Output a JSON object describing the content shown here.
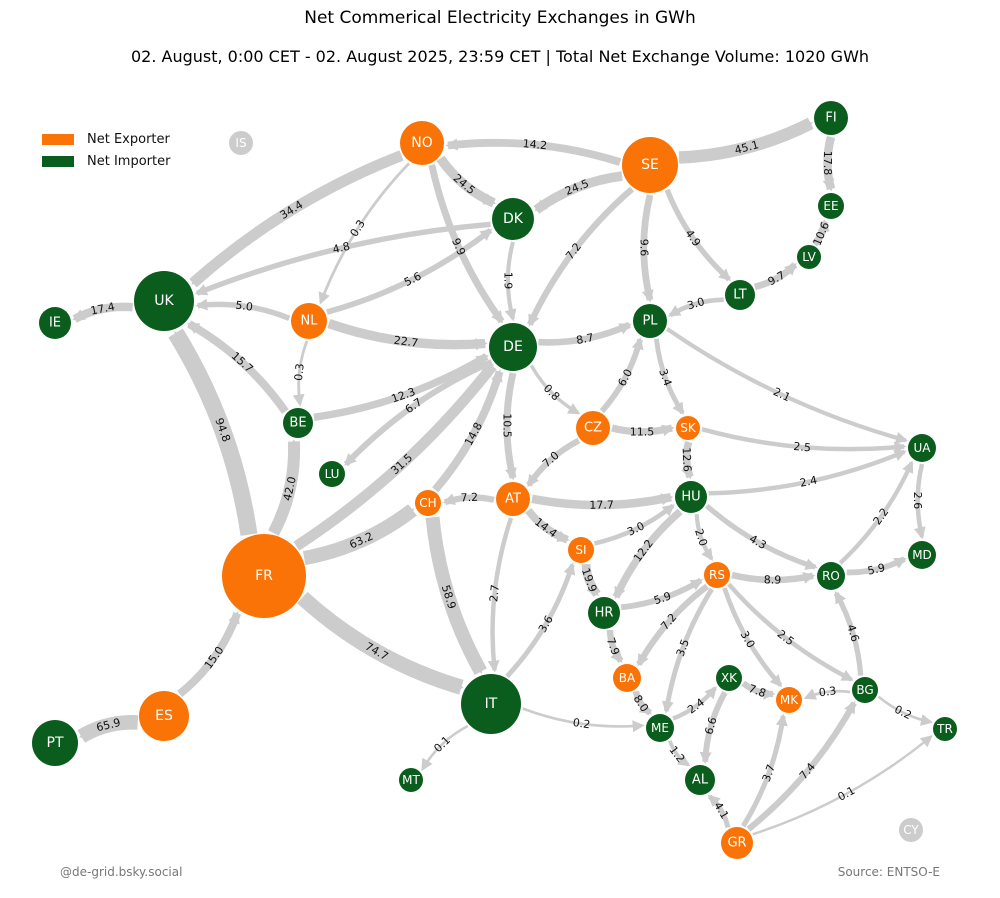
{
  "title": "Net Commerical Electricity Exchanges in GWh",
  "subtitle": "02. August, 0:00 CET - 02. August 2025, 23:59 CET | Total Net Exchange Volume: 1020 GWh",
  "legend": {
    "exporter_label": "Net Exporter",
    "importer_label": "Net Importer"
  },
  "colors": {
    "exporter": "#f97306",
    "importer": "#0a5d1c",
    "no_data": "#cccccc",
    "edge": "#cccccc"
  },
  "credit": "@de-grid.bsky.social",
  "source": "Source: ENTSO-E",
  "nodes": [
    {
      "id": "IS",
      "status": "none"
    },
    {
      "id": "NO",
      "status": "exporter"
    },
    {
      "id": "SE",
      "status": "exporter"
    },
    {
      "id": "FI",
      "status": "importer"
    },
    {
      "id": "EE",
      "status": "importer"
    },
    {
      "id": "LV",
      "status": "importer"
    },
    {
      "id": "LT",
      "status": "importer"
    },
    {
      "id": "DK",
      "status": "importer"
    },
    {
      "id": "UK",
      "status": "importer"
    },
    {
      "id": "IE",
      "status": "importer"
    },
    {
      "id": "NL",
      "status": "exporter"
    },
    {
      "id": "DE",
      "status": "importer"
    },
    {
      "id": "PL",
      "status": "importer"
    },
    {
      "id": "BE",
      "status": "importer"
    },
    {
      "id": "LU",
      "status": "importer"
    },
    {
      "id": "CZ",
      "status": "exporter"
    },
    {
      "id": "SK",
      "status": "exporter"
    },
    {
      "id": "UA",
      "status": "importer"
    },
    {
      "id": "CH",
      "status": "exporter"
    },
    {
      "id": "AT",
      "status": "exporter"
    },
    {
      "id": "HU",
      "status": "importer"
    },
    {
      "id": "SI",
      "status": "exporter"
    },
    {
      "id": "MD",
      "status": "importer"
    },
    {
      "id": "FR",
      "status": "exporter"
    },
    {
      "id": "HR",
      "status": "importer"
    },
    {
      "id": "RS",
      "status": "exporter"
    },
    {
      "id": "RO",
      "status": "importer"
    },
    {
      "id": "BA",
      "status": "exporter"
    },
    {
      "id": "XK",
      "status": "importer"
    },
    {
      "id": "MK",
      "status": "exporter"
    },
    {
      "id": "BG",
      "status": "importer"
    },
    {
      "id": "IT",
      "status": "importer"
    },
    {
      "id": "ME",
      "status": "importer"
    },
    {
      "id": "TR",
      "status": "importer"
    },
    {
      "id": "ES",
      "status": "exporter"
    },
    {
      "id": "PT",
      "status": "importer"
    },
    {
      "id": "MT",
      "status": "importer"
    },
    {
      "id": "AL",
      "status": "importer"
    },
    {
      "id": "GR",
      "status": "exporter"
    },
    {
      "id": "CY",
      "status": "none"
    }
  ],
  "edges": [
    {
      "from": "SE",
      "to": "NO",
      "value": 14.2,
      "label": "14.2"
    },
    {
      "from": "SE",
      "to": "FI",
      "value": 45.1,
      "label": "45.1"
    },
    {
      "from": "SE",
      "to": "DK",
      "value": 24.5,
      "label": "24.5"
    },
    {
      "from": "SE",
      "to": "DE",
      "value": 7.2,
      "label": "7.2"
    },
    {
      "from": "SE",
      "to": "PL",
      "value": 9.6,
      "label": "9.6"
    },
    {
      "from": "SE",
      "to": "LT",
      "value": 4.9,
      "label": "4.9"
    },
    {
      "from": "FI",
      "to": "EE",
      "value": 17.8,
      "label": "17.8"
    },
    {
      "from": "LV",
      "to": "EE",
      "value": 10.6,
      "label": "10.6"
    },
    {
      "from": "LT",
      "to": "LV",
      "value": 9.7,
      "label": "9.7"
    },
    {
      "from": "LT",
      "to": "PL",
      "value": 3.0,
      "label": "3.0"
    },
    {
      "from": "NO",
      "to": "DK",
      "value": 24.5,
      "label": "24.5"
    },
    {
      "from": "NO",
      "to": "UK",
      "value": 34.4,
      "label": "34.4"
    },
    {
      "from": "NO",
      "to": "NL",
      "value": 0.3,
      "label": "0.3"
    },
    {
      "from": "NO",
      "to": "DE",
      "value": 9.9,
      "label": "9.9"
    },
    {
      "from": "DK",
      "to": "UK",
      "value": 4.8,
      "label": "4.8"
    },
    {
      "from": "DK",
      "to": "DE",
      "value": 1.9,
      "label": "1.9"
    },
    {
      "from": "NL",
      "to": "DK",
      "value": 5.6,
      "label": "5.6"
    },
    {
      "from": "NL",
      "to": "UK",
      "value": 5.0,
      "label": "5.0"
    },
    {
      "from": "NL",
      "to": "DE",
      "value": 22.7,
      "label": "22.7"
    },
    {
      "from": "NL",
      "to": "BE",
      "value": 0.3,
      "label": "0.3"
    },
    {
      "from": "UK",
      "to": "IE",
      "value": 17.4,
      "label": "17.4"
    },
    {
      "from": "BE",
      "to": "UK",
      "value": 15.7,
      "label": "15.7"
    },
    {
      "from": "BE",
      "to": "DE",
      "value": 12.3,
      "label": "12.3"
    },
    {
      "from": "DE",
      "to": "LU",
      "value": 6.7,
      "label": "6.7"
    },
    {
      "from": "DE",
      "to": "PL",
      "value": 8.7,
      "label": "8.7"
    },
    {
      "from": "DE",
      "to": "CZ",
      "value": 0.8,
      "label": "0.8"
    },
    {
      "from": "DE",
      "to": "AT",
      "value": 10.5,
      "label": "10.5"
    },
    {
      "from": "CH",
      "to": "DE",
      "value": 14.8,
      "label": "14.8"
    },
    {
      "from": "CZ",
      "to": "PL",
      "value": 6.0,
      "label": "6.0"
    },
    {
      "from": "CZ",
      "to": "SK",
      "value": 11.5,
      "label": "11.5"
    },
    {
      "from": "CZ",
      "to": "AT",
      "value": 7.0,
      "label": "7.0"
    },
    {
      "from": "PL",
      "to": "SK",
      "value": 3.4,
      "label": "3.4"
    },
    {
      "from": "PL",
      "to": "UA",
      "value": 2.1,
      "label": "2.1"
    },
    {
      "from": "SK",
      "to": "UA",
      "value": 2.5,
      "label": "2.5"
    },
    {
      "from": "SK",
      "to": "HU",
      "value": 12.6,
      "label": "12.6"
    },
    {
      "from": "HU",
      "to": "UA",
      "value": 2.4,
      "label": "2.4"
    },
    {
      "from": "UA",
      "to": "MD",
      "value": 2.6,
      "label": "2.6"
    },
    {
      "from": "RO",
      "to": "UA",
      "value": 2.2,
      "label": "2.2"
    },
    {
      "from": "RO",
      "to": "MD",
      "value": 5.9,
      "label": "5.9"
    },
    {
      "from": "AT",
      "to": "CH",
      "value": 7.2,
      "label": "7.2"
    },
    {
      "from": "AT",
      "to": "HU",
      "value": 17.7,
      "label": "17.7"
    },
    {
      "from": "AT",
      "to": "SI",
      "value": 14.4,
      "label": "14.4"
    },
    {
      "from": "AT",
      "to": "IT",
      "value": 2.7,
      "label": "2.7"
    },
    {
      "from": "SI",
      "to": "HU",
      "value": 3.0,
      "label": "3.0"
    },
    {
      "from": "SI",
      "to": "HR",
      "value": 19.9,
      "label": "19.9"
    },
    {
      "from": "HU",
      "to": "HR",
      "value": 12.2,
      "label": "12.2"
    },
    {
      "from": "HU",
      "to": "RS",
      "value": 2.0,
      "label": "2.0"
    },
    {
      "from": "HU",
      "to": "RO",
      "value": 4.3,
      "label": "4.3"
    },
    {
      "from": "HR",
      "to": "RS",
      "value": 5.9,
      "label": "5.9"
    },
    {
      "from": "HR",
      "to": "BA",
      "value": 7.9,
      "label": "7.9"
    },
    {
      "from": "RS",
      "to": "RO",
      "value": 8.9,
      "label": "8.9"
    },
    {
      "from": "RS",
      "to": "BA",
      "value": 7.2,
      "label": "7.2"
    },
    {
      "from": "RS",
      "to": "ME",
      "value": 3.5,
      "label": "3.5"
    },
    {
      "from": "RS",
      "to": "MK",
      "value": 3.0,
      "label": "3.0"
    },
    {
      "from": "RS",
      "to": "BG",
      "value": 2.5,
      "label": "2.5"
    },
    {
      "from": "BG",
      "to": "RO",
      "value": 4.6,
      "label": "4.6"
    },
    {
      "from": "BG",
      "to": "MK",
      "value": 0.3,
      "label": "0.3"
    },
    {
      "from": "BG",
      "to": "TR",
      "value": 0.2,
      "label": "0.2"
    },
    {
      "from": "XK",
      "to": "MK",
      "value": 7.8,
      "label": "7.8"
    },
    {
      "from": "XK",
      "to": "AL",
      "value": 6.6,
      "label": "6.6"
    },
    {
      "from": "ME",
      "to": "XK",
      "value": 2.4,
      "label": "2.4"
    },
    {
      "from": "ME",
      "to": "AL",
      "value": 1.2,
      "label": "1.2"
    },
    {
      "from": "BA",
      "to": "ME",
      "value": 8.0,
      "label": "8.0"
    },
    {
      "from": "FR",
      "to": "UK",
      "value": 94.8,
      "label": "94.8"
    },
    {
      "from": "FR",
      "to": "BE",
      "value": 42.0,
      "label": "42.0"
    },
    {
      "from": "FR",
      "to": "DE",
      "value": 31.5,
      "label": "31.5"
    },
    {
      "from": "FR",
      "to": "CH",
      "value": 63.2,
      "label": "63.2"
    },
    {
      "from": "FR",
      "to": "IT",
      "value": 74.7,
      "label": "74.7"
    },
    {
      "from": "ES",
      "to": "FR",
      "value": 15.0,
      "label": "15.0"
    },
    {
      "from": "ES",
      "to": "PT",
      "value": 65.9,
      "label": "65.9"
    },
    {
      "from": "CH",
      "to": "IT",
      "value": 58.9,
      "label": "58.9"
    },
    {
      "from": "IT",
      "to": "SI",
      "value": 3.6,
      "label": "3.6"
    },
    {
      "from": "IT",
      "to": "MT",
      "value": 0.1,
      "label": "0.1"
    },
    {
      "from": "IT",
      "to": "ME",
      "value": 0.2,
      "label": "0.2"
    },
    {
      "from": "GR",
      "to": "AL",
      "value": 4.1,
      "label": "4.1"
    },
    {
      "from": "GR",
      "to": "MK",
      "value": 3.7,
      "label": "3.7"
    },
    {
      "from": "GR",
      "to": "BG",
      "value": 7.4,
      "label": "7.4"
    },
    {
      "from": "GR",
      "to": "TR",
      "value": 0.1,
      "label": "0.1"
    }
  ]
}
